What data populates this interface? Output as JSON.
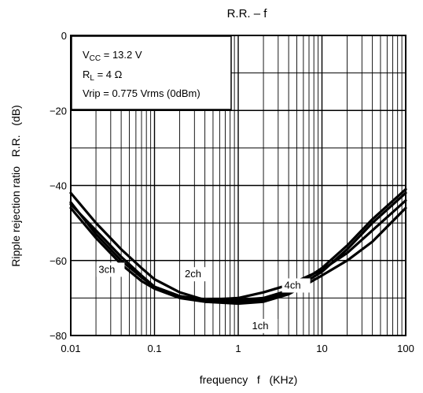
{
  "chart_data": {
    "type": "line",
    "title": "R.R. – f",
    "xlabel": "frequency   f   (KHz)",
    "ylabel": "Ripple rejection ratio   R.R.   (dB)",
    "x_scale": "log",
    "xlim": [
      0.01,
      100
    ],
    "ylim": [
      -80,
      0
    ],
    "grid": true,
    "x_ticks": [
      0.01,
      0.1,
      1,
      10,
      100
    ],
    "x_tick_labels": [
      "0.01",
      "0.1",
      "1",
      "10",
      "100"
    ],
    "y_ticks": [
      0,
      -20,
      -40,
      -60,
      -80
    ],
    "y_tick_labels": [
      "0",
      "−20",
      "−40",
      "−60",
      "−80"
    ],
    "conditions": {
      "vcc_main": "V",
      "vcc_sub": "CC",
      "vcc_value": " = 13.2 V",
      "rl_main": "R",
      "rl_sub": "L",
      "rl_value": " = 4 Ω",
      "vrip": "Vrip = 0.775 Vrms (0dBm)"
    },
    "series": [
      {
        "name": "3ch",
        "x": [
          0.01,
          0.02,
          0.04,
          0.07,
          0.1,
          0.2,
          0.4,
          1,
          2,
          4,
          10,
          20,
          40,
          100
        ],
        "y": [
          -45,
          -52,
          -59,
          -64,
          -67,
          -69.5,
          -71,
          -71,
          -70.5,
          -68.5,
          -63,
          -57,
          -50,
          -42
        ]
      },
      {
        "name": "2ch",
        "x": [
          0.01,
          0.02,
          0.04,
          0.07,
          0.1,
          0.2,
          0.4,
          1,
          2,
          4,
          10,
          20,
          40,
          100
        ],
        "y": [
          -42,
          -50,
          -57,
          -62,
          -65,
          -68.5,
          -70.5,
          -70.5,
          -70,
          -68,
          -62,
          -56,
          -49,
          -41
        ]
      },
      {
        "name": "4ch",
        "x": [
          0.01,
          0.02,
          0.04,
          0.07,
          0.1,
          0.2,
          0.4,
          1,
          2,
          4,
          10,
          20,
          40,
          100
        ],
        "y": [
          -44.5,
          -53,
          -60,
          -64.5,
          -67,
          -69.5,
          -70.5,
          -70,
          -68.5,
          -66.5,
          -62.5,
          -58,
          -52,
          -44
        ]
      },
      {
        "name": "1ch",
        "x": [
          0.01,
          0.02,
          0.04,
          0.07,
          0.1,
          0.2,
          0.4,
          1,
          2,
          4,
          10,
          20,
          40,
          100
        ],
        "y": [
          -46,
          -54,
          -61,
          -65.5,
          -67.5,
          -70,
          -71,
          -71.5,
          -71,
          -69,
          -64,
          -60,
          -55,
          -46
        ]
      }
    ],
    "annotations": [
      {
        "text": "3ch",
        "x": 0.0215,
        "y": -63.3
      },
      {
        "text": "2ch",
        "x": 0.23,
        "y": -64.5
      },
      {
        "text": "4ch",
        "x": 3.55,
        "y": -67.5
      },
      {
        "text": "1ch",
        "x": 1.46,
        "y": -78.3
      }
    ]
  }
}
